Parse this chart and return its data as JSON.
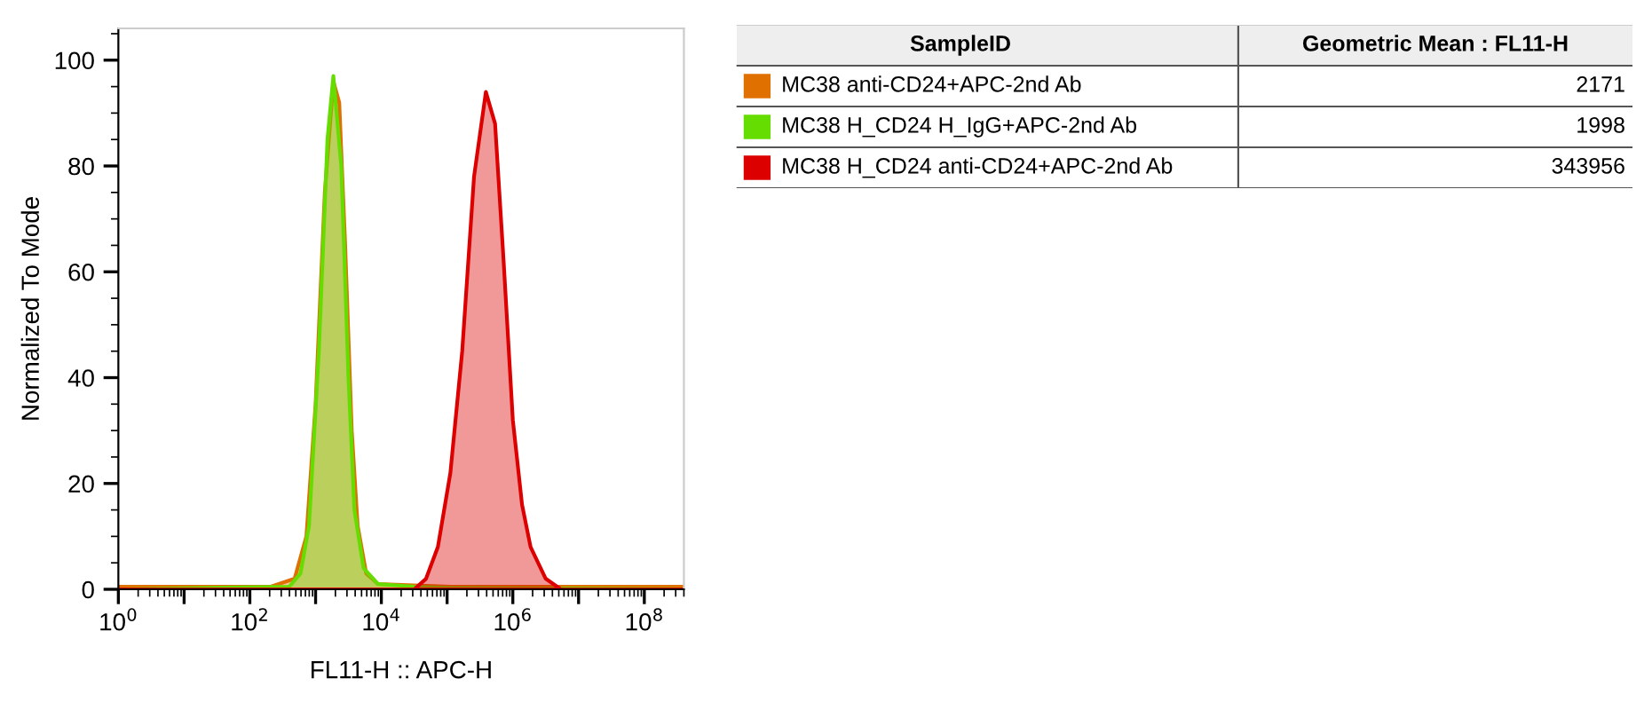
{
  "chart_data": {
    "type": "area",
    "xlabel": "FL11-H :: APC-H",
    "ylabel": "Normalized To Mode",
    "log": "x",
    "xlim": [
      1,
      400000000
    ],
    "ylim": [
      0,
      106
    ],
    "xticks": [
      {
        "value": 1,
        "label": "10$^{0}$"
      },
      {
        "value": 10,
        "label": null
      },
      {
        "value": 100,
        "label": "10$^{2}$"
      },
      {
        "value": 1000,
        "label": null
      },
      {
        "value": 10000,
        "label": "10$^{4}$"
      },
      {
        "value": 100000,
        "label": null
      },
      {
        "value": 1000000,
        "label": "10$^{6}$"
      },
      {
        "value": 10000000,
        "label": null
      },
      {
        "value": 100000000,
        "label": "10$^{8}$"
      }
    ],
    "yticks": [
      0,
      20,
      40,
      60,
      80,
      100
    ],
    "grid": false,
    "legend": "right",
    "legend_title": "SampleID",
    "annotations": [
      "Geometric Mean : FL11-H",
      "2171",
      "1998",
      "343956"
    ],
    "series": [
      {
        "name": "MC38 anti-CD24+APC-2nd Ab",
        "color": "#e07000",
        "x": [
          1,
          209,
          479,
          724,
          1000,
          1380,
          1862,
          2291,
          2818,
          3548,
          4365,
          5888,
          8913,
          112200,
          400000000
        ],
        "values": [
          0.5,
          0.5,
          2,
          10,
          35,
          75,
          96,
          92,
          65,
          30,
          12,
          3,
          1,
          0.5,
          0.5
        ]
      },
      {
        "name": "MC38 H_CD24 H_IgG+APC-2nd Ab",
        "color": "#66dd00",
        "x": [
          1,
          398,
          589,
          794,
          1122,
          1514,
          1862,
          2455,
          3162,
          3890,
          5370,
          8913,
          31623,
          112200,
          400000000
        ],
        "values": [
          0,
          0.5,
          3,
          12,
          45,
          85,
          97,
          80,
          40,
          15,
          4,
          1,
          0.5,
          0.3,
          0
        ]
      },
      {
        "name": "MC38 H_CD24 anti-CD24+APC-2nd Ab",
        "color": "#dd0000",
        "x": [
          1,
          31623,
          47863,
          72444,
          112200,
          169824,
          257040,
          389045,
          537032,
          724436,
          1000000,
          1380384,
          1862087,
          3162278,
          5370318,
          400000000
        ],
        "values": [
          0,
          0,
          2,
          8,
          22,
          45,
          78,
          94,
          88,
          62,
          32,
          16,
          8,
          2,
          0,
          0
        ]
      }
    ]
  }
}
